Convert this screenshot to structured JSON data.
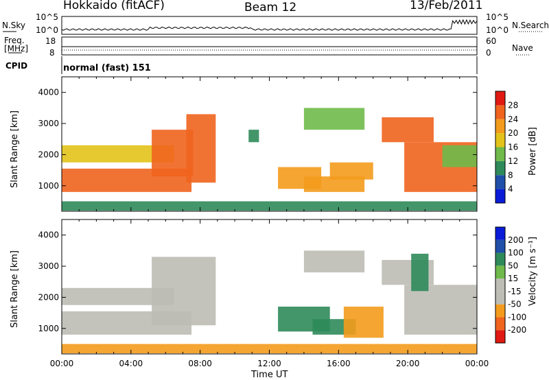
{
  "header": {
    "radar": "Hokkaido (fitACF)",
    "beam": "Beam 12",
    "date": "13/Feb/2011"
  },
  "strip_labels": {
    "nsky": "N.Sky",
    "nsky_ticks": [
      "10^5",
      "10^0"
    ],
    "nsearch": "N.Search",
    "nsearch_ticks": [
      "10^5",
      "10^0"
    ],
    "freq_line1": "Freq.",
    "freq_line2": "[MHz]",
    "freq_ticks": [
      "18",
      "8"
    ],
    "nave": "Nave",
    "nave_ticks": [
      "60",
      "0"
    ],
    "cpid": "CPID",
    "cpid_value": "normal (fast) 151"
  },
  "colors": {
    "power_scale": [
      "#0a1cd8",
      "#1f4fa8",
      "#2f8a5a",
      "#6fba4a",
      "#e3c21a",
      "#f39b1c",
      "#f0641e",
      "#e01a12"
    ],
    "velocity_scale": [
      "#e01a12",
      "#f0641e",
      "#f39b1c",
      "#bdbdb5",
      "#bdbdb5",
      "#6fba4a",
      "#2f8a5a",
      "#1f4fa8",
      "#0a1cd8"
    ],
    "ground_scatter": "#bdbdb5"
  },
  "chart_data": [
    {
      "type": "heatmap",
      "name_panel": "power",
      "ylabel": "Slant Range [km]",
      "yticks": [
        "1000",
        "2000",
        "3000",
        "4000"
      ],
      "ylim": [
        180,
        4500
      ],
      "xlim_hours": [
        0,
        24
      ],
      "colorbar_label": "Power [dB]",
      "colorbar_ticks": [
        "4",
        "8",
        "12",
        "16",
        "20",
        "24",
        "28"
      ],
      "colorbar_range": [
        0,
        32
      ],
      "echo_regions": [
        {
          "t0": 0.0,
          "t1": 7.5,
          "r0": 800,
          "r1": 1550,
          "value": 26
        },
        {
          "t0": 0.0,
          "t1": 6.5,
          "r0": 1750,
          "r1": 2300,
          "value": 18
        },
        {
          "t0": 5.2,
          "t1": 7.6,
          "r0": 1300,
          "r1": 2800,
          "value": 27
        },
        {
          "t0": 7.2,
          "t1": 8.9,
          "r0": 1100,
          "r1": 3300,
          "value": 24
        },
        {
          "t0": 10.8,
          "t1": 11.4,
          "r0": 2400,
          "r1": 2800,
          "value": 10
        },
        {
          "t0": 12.5,
          "t1": 15.0,
          "r0": 900,
          "r1": 1600,
          "value": 22
        },
        {
          "t0": 14.0,
          "t1": 17.5,
          "r0": 800,
          "r1": 1300,
          "value": 20
        },
        {
          "t0": 15.5,
          "t1": 18.0,
          "r0": 1200,
          "r1": 1750,
          "value": 20
        },
        {
          "t0": 14.0,
          "t1": 17.5,
          "r0": 2800,
          "r1": 3500,
          "value": 14
        },
        {
          "t0": 18.5,
          "t1": 21.5,
          "r0": 2400,
          "r1": 3200,
          "value": 25
        },
        {
          "t0": 19.8,
          "t1": 24.0,
          "r0": 800,
          "r1": 2400,
          "value": 27
        },
        {
          "t0": 22.0,
          "t1": 24.0,
          "r0": 1600,
          "r1": 2300,
          "value": 12
        },
        {
          "t0": 0.0,
          "t1": 24.0,
          "r0": 200,
          "r1": 500,
          "value": 8
        }
      ]
    },
    {
      "type": "heatmap",
      "name_panel": "velocity",
      "ylabel": "Slant Range [km]",
      "yticks": [
        "1000",
        "2000",
        "3000",
        "4000"
      ],
      "ylim": [
        180,
        4500
      ],
      "xlim_hours": [
        0,
        24
      ],
      "xlabel": "Time UT",
      "xticks": [
        "00:00",
        "04:00",
        "08:00",
        "12:00",
        "16:00",
        "20:00",
        "00:00"
      ],
      "colorbar_label": "Velocity [m s⁻¹]",
      "colorbar_ticks": [
        "200",
        "100",
        "50",
        "15",
        "-15",
        "-50",
        "-100",
        "-200"
      ],
      "echo_regions": [
        {
          "t0": 0.0,
          "t1": 7.5,
          "r0": 800,
          "r1": 1550,
          "value": 0
        },
        {
          "t0": 0.0,
          "t1": 6.5,
          "r0": 1750,
          "r1": 2300,
          "value": 0
        },
        {
          "t0": 5.2,
          "t1": 8.9,
          "r0": 1100,
          "r1": 3300,
          "value": 0
        },
        {
          "t0": 12.5,
          "t1": 15.5,
          "r0": 900,
          "r1": 1700,
          "value": 40
        },
        {
          "t0": 14.5,
          "t1": 17.0,
          "r0": 800,
          "r1": 1300,
          "value": 30
        },
        {
          "t0": 16.3,
          "t1": 18.6,
          "r0": 700,
          "r1": 1700,
          "value": -50
        },
        {
          "t0": 14.0,
          "t1": 17.5,
          "r0": 2800,
          "r1": 3500,
          "value": 0
        },
        {
          "t0": 18.5,
          "t1": 21.5,
          "r0": 2400,
          "r1": 3200,
          "value": 0
        },
        {
          "t0": 19.8,
          "t1": 24.0,
          "r0": 800,
          "r1": 2400,
          "value": 0
        },
        {
          "t0": 20.2,
          "t1": 21.2,
          "r0": 2200,
          "r1": 3400,
          "value": 40
        },
        {
          "t0": 0.0,
          "t1": 24.0,
          "r0": 200,
          "r1": 500,
          "value": -50
        }
      ]
    }
  ]
}
